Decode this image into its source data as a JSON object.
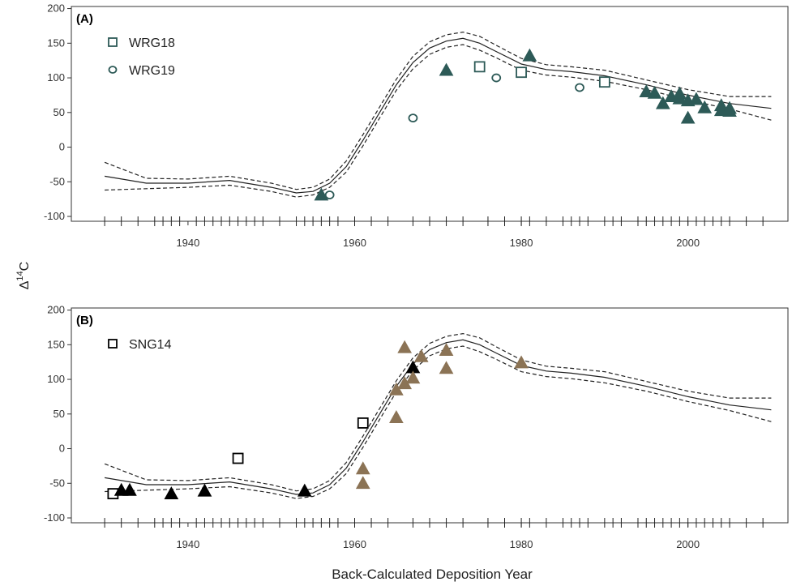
{
  "figure": {
    "xlabel": "Back-Calculated Deposition Year",
    "ylabel_main": "Δ",
    "ylabel_sup": "14",
    "ylabel_tail": "C"
  },
  "chart_data": [
    {
      "type": "scatter",
      "panel_label": "(A)",
      "xlim": [
        1926,
        2012
      ],
      "ylim": [
        -107,
        203
      ],
      "xticks": [
        1940,
        1960,
        1980,
        2000
      ],
      "yticks": [
        -100,
        -50,
        0,
        50,
        100,
        150,
        200
      ],
      "grid": false,
      "legend_position": "top-left",
      "colors": {
        "markers": "#2d5a57"
      },
      "legend": [
        {
          "label": "WRG18",
          "marker": "square"
        },
        {
          "label": "WRG19",
          "marker": "circle"
        }
      ],
      "series": [
        {
          "name": "WRG18",
          "marker": "square",
          "x": [
            1975,
            1980,
            1990
          ],
          "y": [
            116,
            108,
            94
          ]
        },
        {
          "name": "WRG19",
          "marker": "circle",
          "x": [
            1957,
            1967,
            1977,
            1987
          ],
          "y": [
            -69,
            42,
            100,
            86
          ]
        },
        {
          "marker": "triangle",
          "x": [
            1956,
            1971,
            1981,
            1995,
            1996,
            1997,
            1998,
            1999,
            1999,
            2000,
            2000,
            2001,
            2002,
            2004,
            2004,
            2005,
            2005
          ],
          "y": [
            -69,
            111,
            132,
            80,
            78,
            63,
            73,
            70,
            77,
            42,
            67,
            69,
            57,
            53,
            60,
            56,
            52
          ]
        }
      ],
      "rug_x": [
        1930,
        1932,
        1934,
        1936,
        1937,
        1938,
        1939,
        1941,
        1942,
        1943,
        1944,
        1945,
        1946,
        1947,
        1948,
        1949,
        1951,
        1953,
        1954,
        1955,
        1956,
        1957,
        1958,
        1960,
        1962,
        1964,
        1967,
        1969,
        1971,
        1973,
        1976,
        1978,
        1980,
        1981,
        1983,
        1985,
        1986,
        1987,
        1988,
        1990,
        1991,
        1992,
        1994,
        1995,
        1996,
        1997,
        1998,
        1999,
        2000,
        2001,
        2002,
        2003,
        2004,
        2005,
        2007,
        2009
      ]
    },
    {
      "type": "scatter",
      "panel_label": "(B)",
      "xlim": [
        1926,
        2012
      ],
      "ylim": [
        -107,
        203
      ],
      "xticks": [
        1940,
        1960,
        1980,
        2000
      ],
      "yticks": [
        -100,
        -50,
        0,
        50,
        100,
        150,
        200
      ],
      "grid": false,
      "legend_position": "top-left",
      "colors": {
        "markers": "#000000",
        "brown": "#8b7355"
      },
      "legend": [
        {
          "label": "SNG14",
          "marker": "square"
        }
      ],
      "series": [
        {
          "name": "SNG14",
          "marker": "square",
          "color": "#000000",
          "x": [
            1931,
            1946,
            1961
          ],
          "y": [
            -65,
            -14,
            37
          ]
        },
        {
          "marker": "triangle",
          "color": "#000000",
          "x": [
            1932,
            1933,
            1938,
            1942,
            1954,
            1967
          ],
          "y": [
            -60,
            -60,
            -65,
            -61,
            -61,
            117
          ]
        },
        {
          "marker": "triangle",
          "color": "#8b7355",
          "x": [
            1961,
            1961,
            1965,
            1965,
            1966,
            1966,
            1967,
            1968,
            1971,
            1971,
            1980
          ],
          "y": [
            -29,
            -50,
            45,
            85,
            146,
            94,
            102,
            133,
            142,
            116,
            124
          ]
        }
      ],
      "rug_x": [
        1930,
        1932,
        1934,
        1936,
        1937,
        1938,
        1939,
        1941,
        1942,
        1943,
        1944,
        1945,
        1946,
        1947,
        1948,
        1949,
        1951,
        1953,
        1954,
        1955,
        1956,
        1957,
        1958,
        1960,
        1962,
        1964,
        1967,
        1969,
        1971,
        1973,
        1976,
        1978,
        1980,
        1981,
        1983,
        1985,
        1986,
        1987,
        1988,
        1990,
        1991,
        1992,
        1994,
        1995,
        1996,
        1997,
        1998,
        1999,
        2000,
        2001,
        2002,
        2003,
        2004,
        2005,
        2007,
        2009
      ]
    }
  ],
  "reference_curve": {
    "x": [
      1930,
      1935,
      1940,
      1945,
      1950,
      1953,
      1955,
      1957,
      1959,
      1961,
      1963,
      1965,
      1967,
      1969,
      1971,
      1973,
      1975,
      1977,
      1980,
      1983,
      1986,
      1990,
      1995,
      2000,
      2005,
      2010
    ],
    "y": [
      -42,
      -52,
      -52,
      -48,
      -58,
      -66,
      -64,
      -52,
      -28,
      10,
      50,
      90,
      122,
      143,
      153,
      157,
      150,
      138,
      120,
      112,
      109,
      103,
      90,
      75,
      63,
      56
    ],
    "band_upper": [
      -22,
      -45,
      -46,
      -42,
      -52,
      -61,
      -58,
      -46,
      -20,
      18,
      58,
      98,
      131,
      152,
      162,
      166,
      160,
      147,
      128,
      119,
      116,
      111,
      97,
      83,
      73,
      73
    ],
    "band_lower": [
      -62,
      -60,
      -58,
      -55,
      -64,
      -72,
      -69,
      -58,
      -36,
      2,
      42,
      82,
      113,
      134,
      144,
      148,
      140,
      129,
      111,
      104,
      101,
      95,
      83,
      68,
      55,
      39
    ]
  }
}
